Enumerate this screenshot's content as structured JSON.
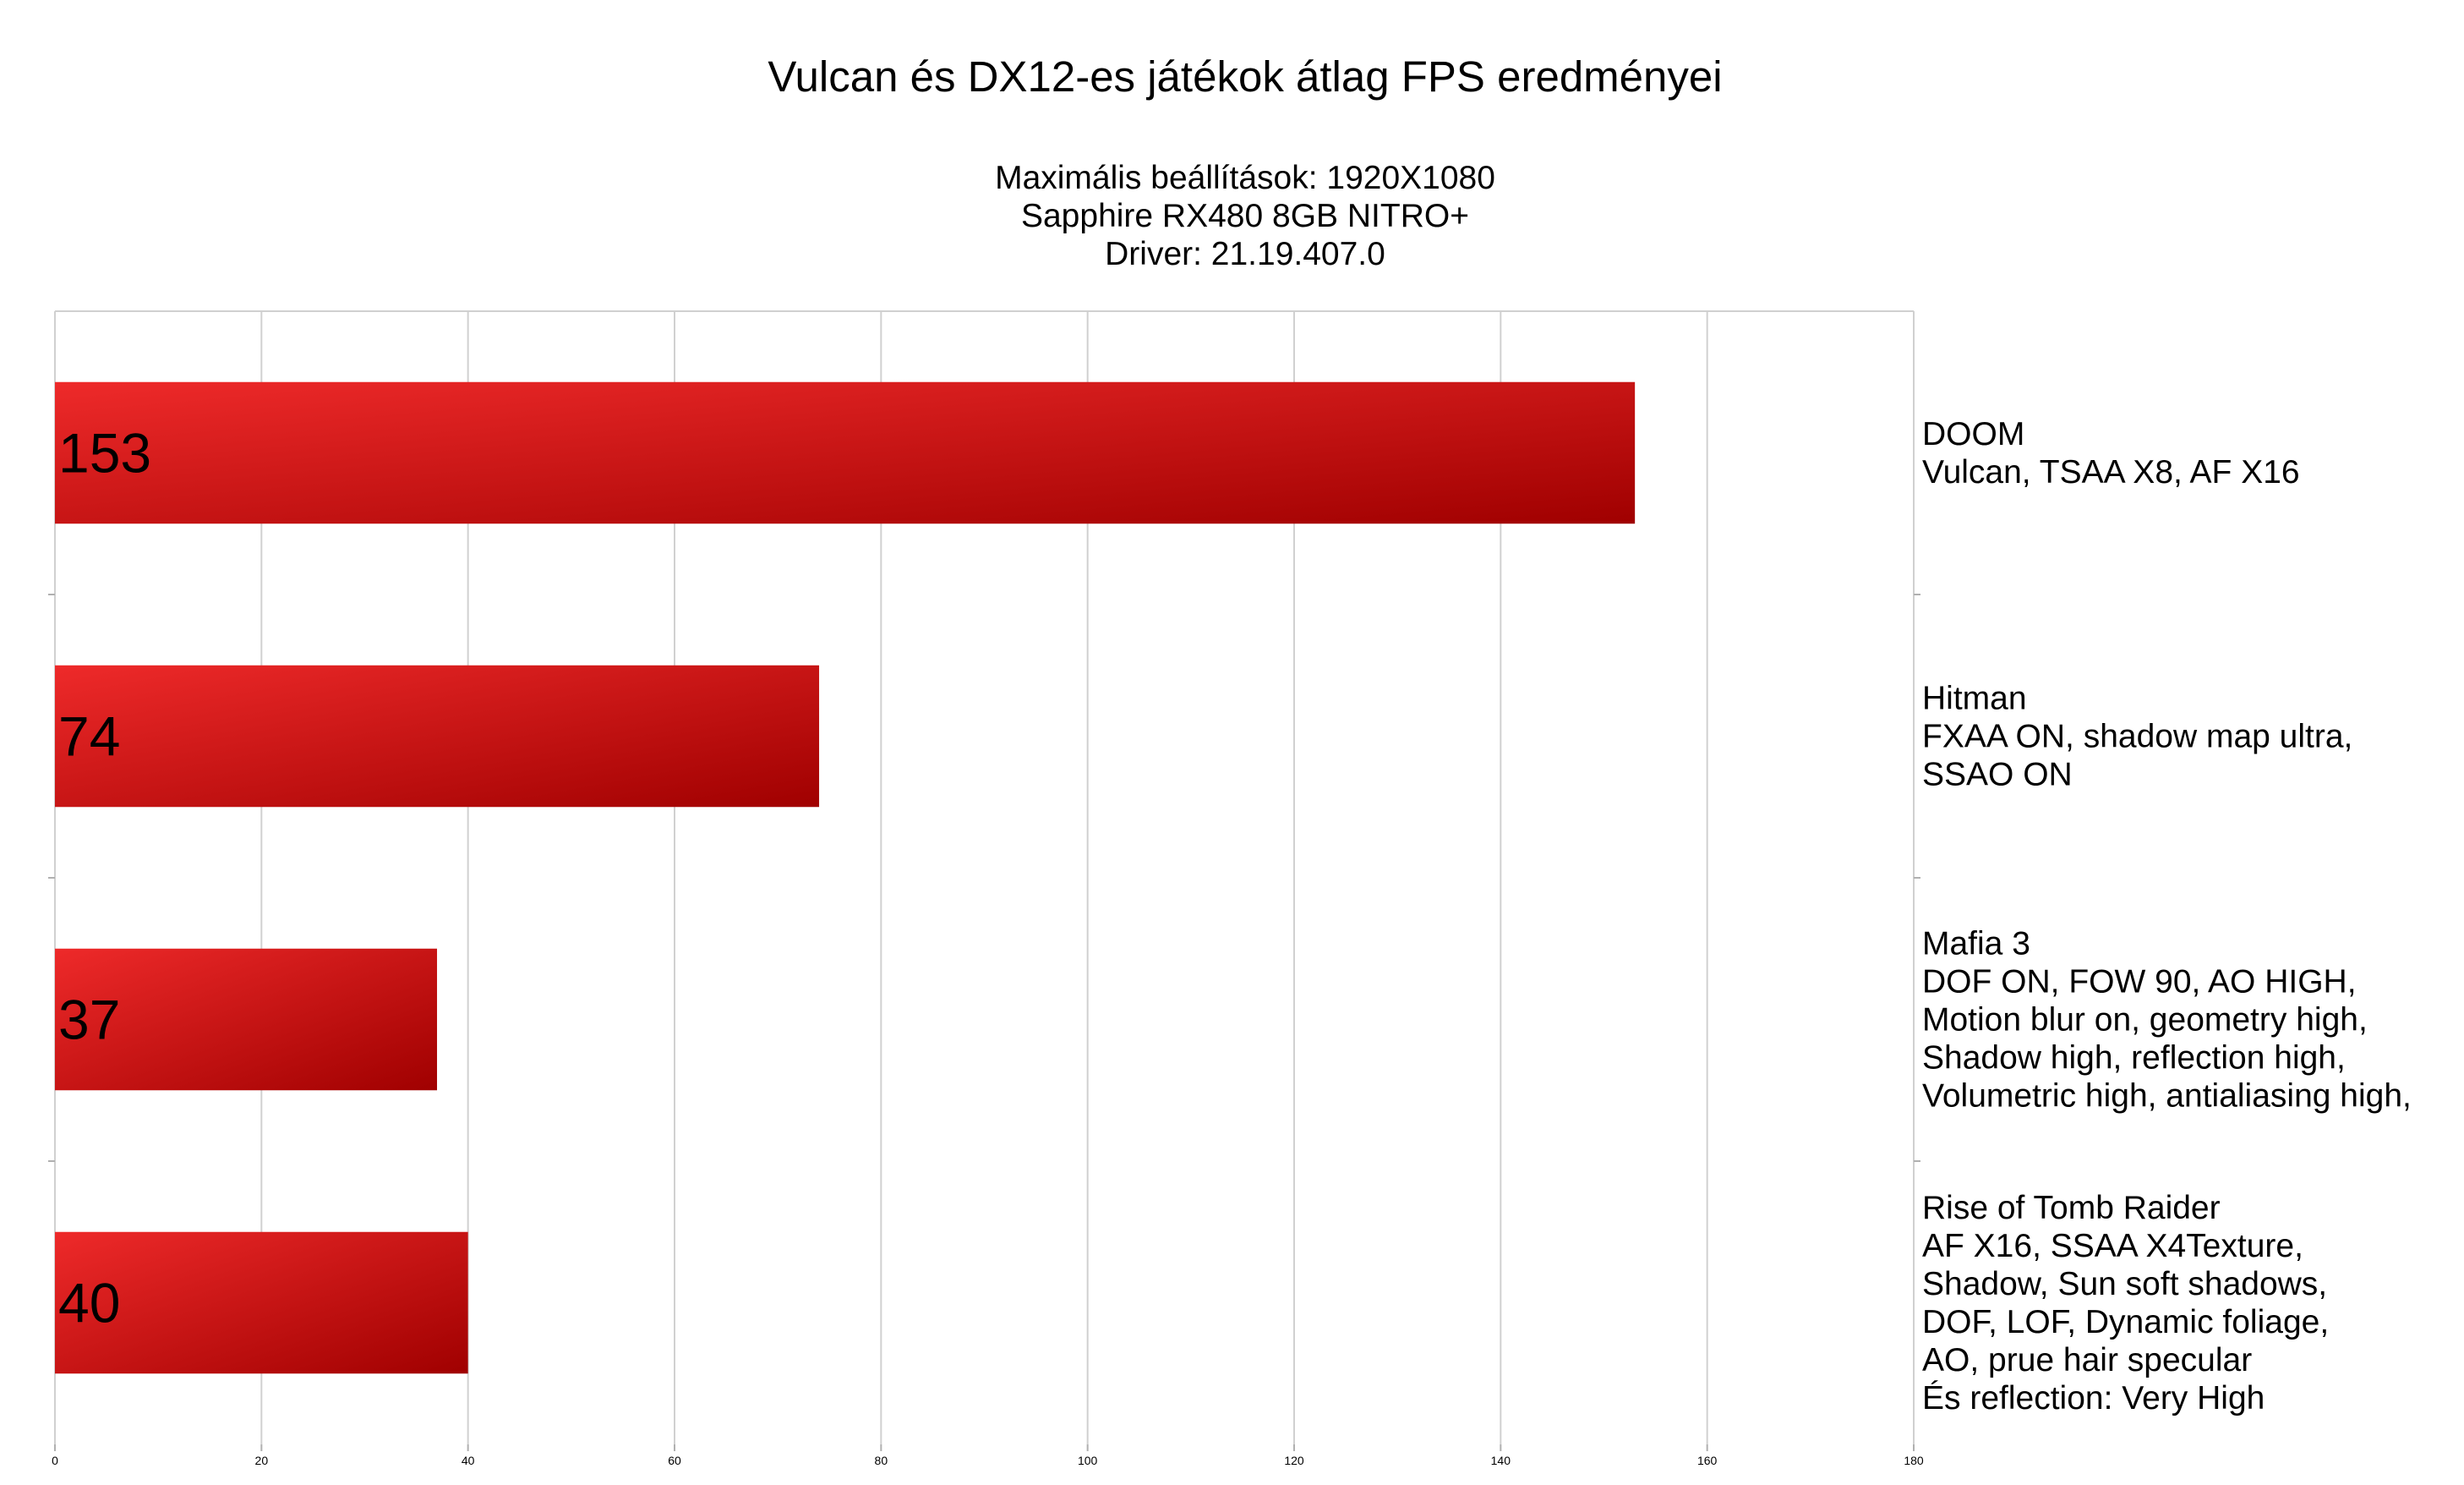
{
  "chart_data": {
    "type": "bar",
    "orientation": "horizontal",
    "title": "Vulcan és DX12-es játékok átlag FPS eredményei",
    "subtitle": [
      "Maximális beállítások: 1920X1080",
      "Sapphire RX480 8GB NITRO+",
      "Driver: 21.19.407.0"
    ],
    "xlabel": "",
    "ylabel": "",
    "xlim": [
      0,
      180
    ],
    "xticks": [
      0,
      20,
      40,
      60,
      80,
      100,
      120,
      140,
      160,
      180
    ],
    "grid": true,
    "legend": "none",
    "bar_color_light": "#ee2a2a",
    "bar_color_dark": "#a00000",
    "categories": [
      {
        "lines": [
          "DOOM",
          "Vulcan, TSAA X8, AF X16"
        ]
      },
      {
        "lines": [
          "Hitman",
          "FXAA ON, shadow map ultra,",
          "SSAO ON"
        ]
      },
      {
        "lines": [
          "Mafia 3",
          "DOF ON, FOW 90, AO HIGH,",
          "Motion blur on, geometry high,",
          "Shadow high, reflection high,",
          "Volumetric high, antialiasing high,"
        ]
      },
      {
        "lines": [
          "Rise of Tomb Raider",
          "AF X16, SSAA X4Texture,",
          "Shadow, Sun soft shadows,",
          "DOF, LOF, Dynamic foliage,",
          "AO, prue hair specular",
          "És reflection: Very High"
        ]
      }
    ],
    "values": [
      153,
      74,
      37,
      40
    ]
  }
}
